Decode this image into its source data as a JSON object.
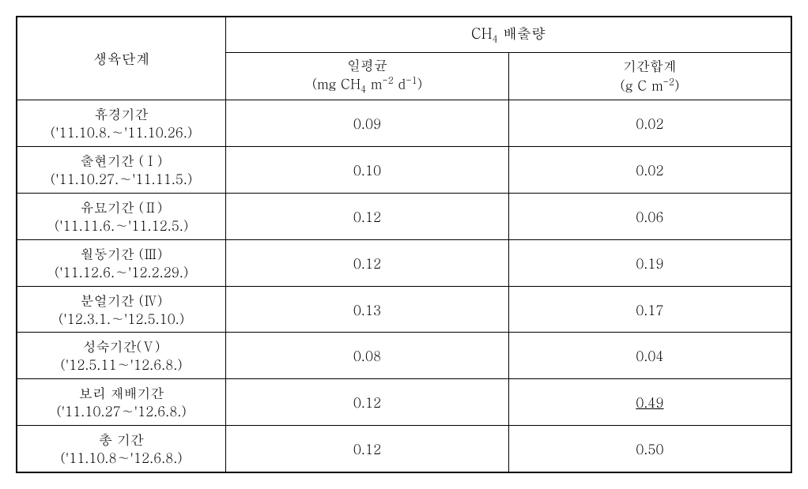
{
  "table": {
    "header": {
      "stage_label": "생육단계",
      "emission_label_prefix": "CH",
      "emission_label_sub": "4",
      "emission_label_suffix": " 배출량",
      "daily_avg_label": "일평균",
      "daily_avg_unit_prefix": "(mg CH",
      "daily_avg_unit_sub1": "4",
      "daily_avg_unit_mid": " m",
      "daily_avg_unit_sup1": "-2",
      "daily_avg_unit_mid2": " d",
      "daily_avg_unit_sup2": "-1",
      "daily_avg_unit_suffix": ")",
      "period_sum_label": "기간합계",
      "period_sum_unit_prefix": "(g C m",
      "period_sum_unit_sup": "-2",
      "period_sum_unit_suffix": ")"
    },
    "colors": {
      "border": "#000000",
      "background": "#ffffff",
      "text": "#000000"
    },
    "rows": [
      {
        "stage_name": "휴경기간",
        "stage_dates": "('11.10.8.∼'11.10.26.)",
        "daily_avg": "0.09",
        "period_sum": "0.02",
        "underline_sum": false
      },
      {
        "stage_name": "출현기간 (Ⅰ)",
        "stage_dates": "('11.10.27.∼'11.11.5.)",
        "daily_avg": "0.10",
        "period_sum": "0.02",
        "underline_sum": false
      },
      {
        "stage_name": "유묘기간 (Ⅱ)",
        "stage_dates": "('11.11.6.∼'11.12.5.)",
        "daily_avg": "0.12",
        "period_sum": "0.06",
        "underline_sum": false
      },
      {
        "stage_name": "월동기간 (Ⅲ)",
        "stage_dates": "('11.12.6.∼'12.2.29.)",
        "daily_avg": "0.12",
        "period_sum": "0.19",
        "underline_sum": false
      },
      {
        "stage_name": "분얼기간 (Ⅳ)",
        "stage_dates": "('12.3.1.∼'12.5.10.)",
        "daily_avg": "0.13",
        "period_sum": "0.17",
        "underline_sum": false
      },
      {
        "stage_name": "성숙기간(Ⅴ)",
        "stage_dates": "('12.5.11∼'12.6.8.)",
        "daily_avg": "0.08",
        "period_sum": "0.04",
        "underline_sum": false
      },
      {
        "stage_name": "보리 재배기간",
        "stage_dates": "('11.10.27∼'12.6.8.)",
        "daily_avg": "0.12",
        "period_sum": "0.49",
        "underline_sum": true
      },
      {
        "stage_name": "총 기간",
        "stage_dates": "('11.10.8∼'12.6.8.)",
        "daily_avg": "0.12",
        "period_sum": "0.50",
        "underline_sum": false
      }
    ]
  }
}
